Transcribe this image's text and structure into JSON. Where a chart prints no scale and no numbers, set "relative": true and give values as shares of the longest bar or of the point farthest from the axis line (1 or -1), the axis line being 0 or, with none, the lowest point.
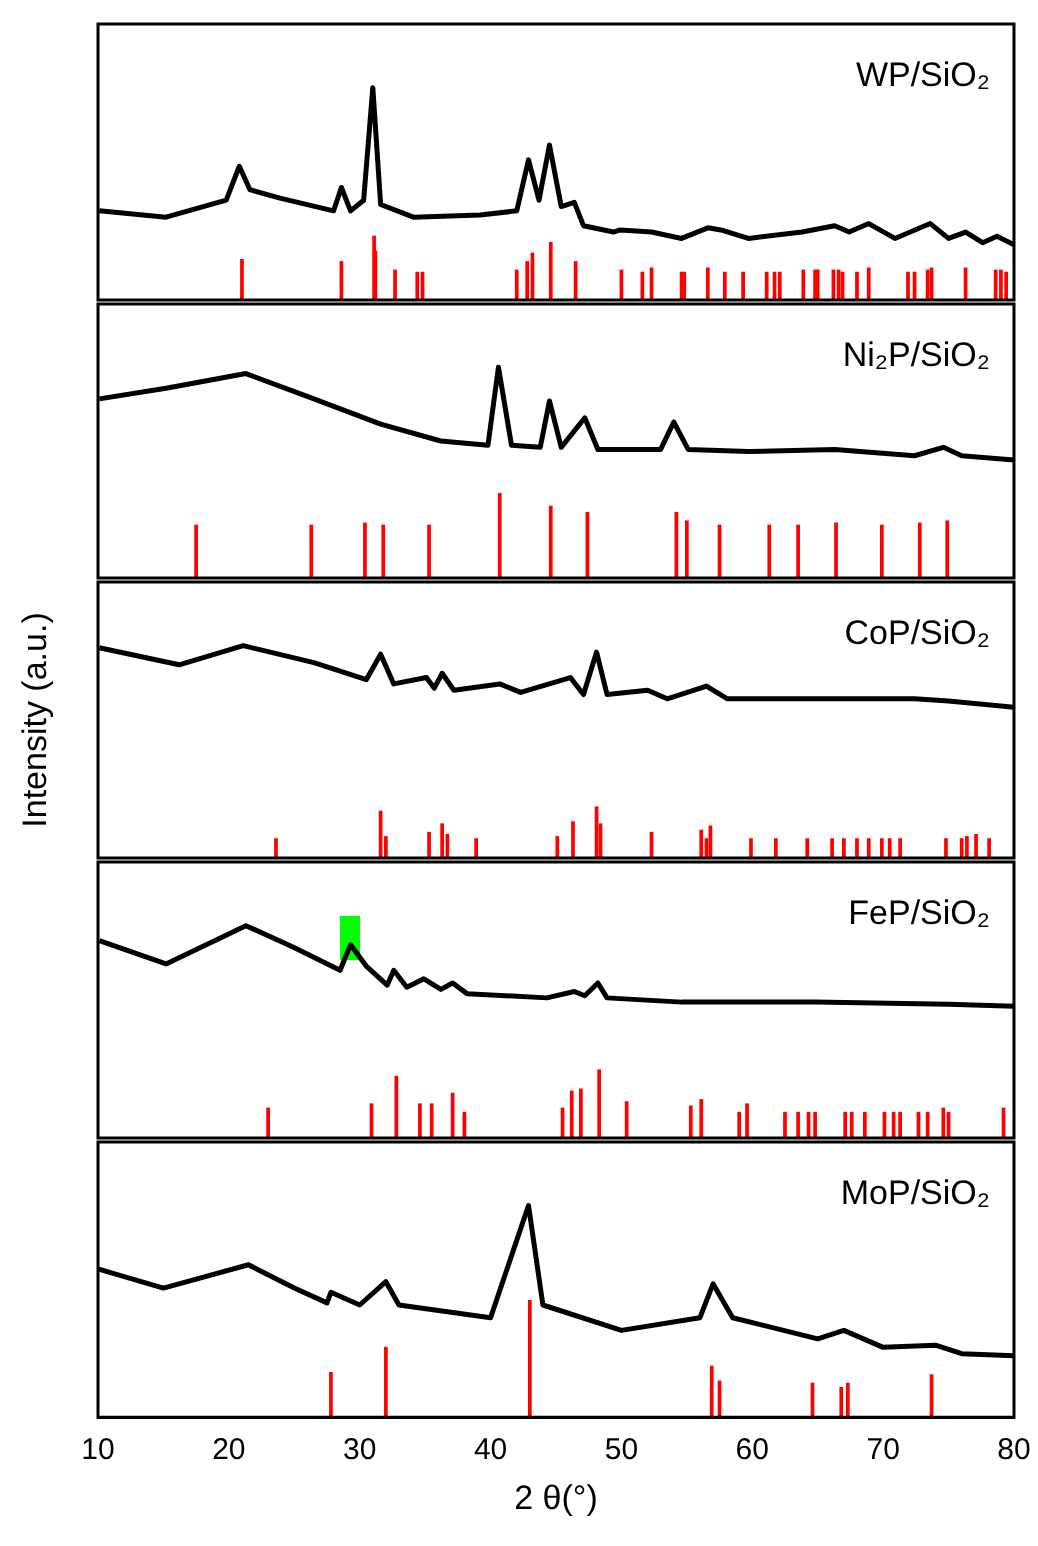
{
  "chart_data": [
    {
      "type": "line",
      "relative": true,
      "xlim": [
        10,
        80
      ],
      "xticks": [
        10,
        20,
        30,
        40,
        50,
        60,
        70,
        80
      ],
      "tick_labels": false,
      "legend": false,
      "annotations": [
        "WP/SiO₂"
      ],
      "series": [
        {
          "color": "#000000",
          "x": [
            10.1,
            15.2,
            19.8,
            20.8,
            21.6,
            23.9,
            28.0,
            28.6,
            29.3,
            30.3,
            31.0,
            31.6,
            34.1,
            39.2,
            42.0,
            42.9,
            43.7,
            44.5,
            45.4,
            46.4,
            47.1,
            49.4,
            49.9,
            52.3,
            54.6,
            56.6,
            57.6,
            59.7,
            63.8,
            66.3,
            67.4,
            68.9,
            70.9,
            73.6,
            75.0,
            76.3,
            77.6,
            78.7,
            80
          ],
          "values": [
            0.42,
            0.39,
            0.47,
            0.63,
            0.52,
            0.48,
            0.42,
            0.53,
            0.42,
            0.47,
            1,
            0.45,
            0.39,
            0.4,
            0.42,
            0.66,
            0.47,
            0.73,
            0.44,
            0.46,
            0.35,
            0.32,
            0.33,
            0.32,
            0.29,
            0.34,
            0.33,
            0.29,
            0.32,
            0.35,
            0.32,
            0.36,
            0.29,
            0.36,
            0.29,
            0.32,
            0.27,
            0.3,
            0.26
          ]
        },
        {
          "type": "bar",
          "color": "#ff0000",
          "x": [
            21.0,
            28.6,
            31.1,
            31.2,
            32.7,
            34.4,
            34.8,
            42.0,
            42.8,
            43.2,
            44.6,
            46.5,
            50.0,
            51.6,
            52.3,
            54.6,
            54.8,
            56.6,
            57.9,
            59.3,
            61.1,
            61.7,
            62.1,
            63.9,
            64.8,
            65.0,
            66.2,
            66.6,
            66.9,
            68.0,
            68.9,
            71.9,
            72.4,
            73.4,
            73.7,
            76.3,
            78.6,
            79.0,
            79.4
          ],
          "values": [
            0.19,
            0.18,
            0.3,
            0.23,
            0.14,
            0.13,
            0.13,
            0.14,
            0.18,
            0.22,
            0.27,
            0.18,
            0.14,
            0.13,
            0.15,
            0.13,
            0.13,
            0.15,
            0.13,
            0.13,
            0.13,
            0.13,
            0.13,
            0.14,
            0.14,
            0.14,
            0.14,
            0.14,
            0.13,
            0.13,
            0.15,
            0.13,
            0.13,
            0.14,
            0.15,
            0.15,
            0.14,
            0.14,
            0.13
          ]
        }
      ]
    },
    {
      "type": "line",
      "relative": true,
      "xlim": [
        10,
        80
      ],
      "xticks": [
        10,
        20,
        30,
        40,
        50,
        60,
        70,
        80
      ],
      "tick_labels": false,
      "legend": false,
      "annotations": [
        "Ni₂P/SiO₂"
      ],
      "series": [
        {
          "color": "#000000",
          "x": [
            10.1,
            15.2,
            21.3,
            26.5,
            31.6,
            36.2,
            39.8,
            40.6,
            41.6,
            43.8,
            44.5,
            45.4,
            47.2,
            48.2,
            53.0,
            54.0,
            55.1,
            59.7,
            66.3,
            72.4,
            74.6,
            76.0,
            80
          ],
          "values": [
            0.85,
            0.9,
            0.97,
            0.85,
            0.73,
            0.65,
            0.63,
            1,
            0.63,
            0.62,
            0.84,
            0.62,
            0.76,
            0.61,
            0.61,
            0.74,
            0.61,
            0.6,
            0.61,
            0.58,
            0.62,
            0.58,
            0.56
          ]
        },
        {
          "type": "bar",
          "color": "#ff0000",
          "x": [
            17.5,
            26.3,
            30.4,
            31.8,
            35.3,
            40.7,
            44.6,
            47.4,
            54.2,
            55.0,
            57.5,
            61.3,
            63.5,
            66.4,
            69.9,
            72.8,
            74.9
          ],
          "values": [
            0.25,
            0.25,
            0.26,
            0.25,
            0.25,
            0.4,
            0.34,
            0.31,
            0.31,
            0.27,
            0.25,
            0.25,
            0.25,
            0.26,
            0.25,
            0.26,
            0.27
          ]
        }
      ]
    },
    {
      "type": "line",
      "relative": true,
      "xlim": [
        10,
        80
      ],
      "xticks": [
        10,
        20,
        30,
        40,
        50,
        60,
        70,
        80
      ],
      "tick_labels": false,
      "legend": false,
      "ylabel": "Intensity (a.u.)",
      "annotations": [
        "CoP/SiO₂"
      ],
      "series": [
        {
          "color": "#000000",
          "x": [
            10.1,
            16.2,
            21.1,
            26.5,
            30.5,
            31.6,
            32.6,
            35.1,
            35.7,
            36.3,
            37.2,
            40.7,
            42.3,
            46.1,
            47.1,
            48.1,
            48.9,
            52.0,
            53.5,
            56.5,
            58.1,
            64.8,
            72.4,
            75.0,
            80
          ],
          "values": [
            0.99,
            0.91,
            1,
            0.92,
            0.84,
            0.96,
            0.82,
            0.85,
            0.8,
            0.87,
            0.79,
            0.82,
            0.78,
            0.85,
            0.77,
            0.97,
            0.77,
            0.79,
            0.75,
            0.81,
            0.75,
            0.75,
            0.75,
            0.74,
            0.71
          ]
        },
        {
          "type": "bar",
          "color": "#ff0000",
          "x": [
            23.6,
            31.6,
            32.0,
            35.3,
            36.3,
            36.7,
            38.9,
            45.1,
            46.3,
            48.1,
            48.4,
            52.3,
            56.1,
            56.5,
            56.8,
            59.9,
            61.8,
            64.2,
            66.1,
            67.0,
            68.0,
            68.9,
            69.9,
            70.5,
            71.3,
            74.8,
            76.0,
            76.4,
            77.1,
            78.1
          ],
          "values": [
            0.09,
            0.22,
            0.1,
            0.12,
            0.16,
            0.11,
            0.09,
            0.1,
            0.17,
            0.24,
            0.16,
            0.12,
            0.13,
            0.09,
            0.15,
            0.09,
            0.09,
            0.09,
            0.09,
            0.09,
            0.09,
            0.09,
            0.09,
            0.09,
            0.09,
            0.09,
            0.09,
            0.1,
            0.11,
            0.09
          ]
        }
      ]
    },
    {
      "type": "line",
      "relative": true,
      "xlim": [
        10,
        80
      ],
      "xticks": [
        10,
        20,
        30,
        40,
        50,
        60,
        70,
        80
      ],
      "tick_labels": false,
      "legend": false,
      "annotations": [
        "FeP/SiO₂"
      ],
      "series": [
        {
          "color": "#000000",
          "x": [
            10.1,
            15.2,
            21.3,
            24.9,
            28.5,
            29.3,
            30.5,
            32.1,
            32.6,
            33.6,
            34.9,
            36.2,
            37.1,
            38.2,
            44.3,
            46.4,
            47.2,
            48.2,
            48.9,
            54.6,
            64.8,
            75.0,
            80
          ],
          "values": [
            0.93,
            0.82,
            1,
            0.9,
            0.79,
            0.91,
            0.81,
            0.72,
            0.79,
            0.71,
            0.75,
            0.7,
            0.73,
            0.68,
            0.66,
            0.69,
            0.67,
            0.73,
            0.66,
            0.64,
            0.64,
            0.63,
            0.62
          ]
        },
        {
          "type": "bar",
          "color": "#ff0000",
          "x": [
            23.0,
            30.9,
            32.8,
            34.6,
            35.5,
            37.1,
            38.0,
            45.5,
            46.2,
            46.9,
            48.3,
            50.4,
            55.3,
            56.1,
            59.0,
            59.6,
            62.5,
            63.5,
            64.3,
            64.8,
            67.1,
            67.6,
            68.6,
            70.1,
            70.8,
            71.3,
            72.7,
            73.4,
            74.6,
            75.0,
            79.2
          ],
          "values": [
            0.14,
            0.16,
            0.29,
            0.16,
            0.16,
            0.21,
            0.12,
            0.14,
            0.22,
            0.23,
            0.32,
            0.17,
            0.15,
            0.18,
            0.12,
            0.16,
            0.12,
            0.12,
            0.12,
            0.12,
            0.12,
            0.12,
            0.12,
            0.12,
            0.12,
            0.12,
            0.12,
            0.12,
            0.14,
            0.12,
            0.14
          ]
        }
      ]
    },
    {
      "type": "line",
      "relative": true,
      "xlim": [
        10,
        80
      ],
      "xticks": [
        10,
        20,
        30,
        40,
        50,
        60,
        70,
        80
      ],
      "tick_labels": "x",
      "legend": false,
      "xlabel": "2 θ(°)",
      "annotations": [
        "MoP/SiO₂"
      ],
      "series": [
        {
          "color": "#000000",
          "x": [
            10,
            15,
            21.5,
            25,
            27.5,
            27.8,
            30,
            32,
            33,
            40,
            42.9,
            44,
            50,
            56,
            57,
            58.5,
            65,
            67,
            70,
            74,
            76,
            80
          ],
          "values": [
            0.7,
            0.61,
            0.72,
            0.61,
            0.54,
            0.59,
            0.53,
            0.64,
            0.53,
            0.47,
            1,
            0.53,
            0.41,
            0.47,
            0.63,
            0.47,
            0.37,
            0.41,
            0.33,
            0.34,
            0.3,
            0.29
          ]
        },
        {
          "type": "bar",
          "color": "#ff0000",
          "x": [
            27.8,
            32.0,
            43.0,
            56.9,
            57.5,
            64.6,
            66.8,
            67.3,
            73.7
          ],
          "values": [
            0.21,
            0.33,
            0.55,
            0.24,
            0.17,
            0.16,
            0.14,
            0.16,
            0.2
          ]
        }
      ]
    }
  ]
}
